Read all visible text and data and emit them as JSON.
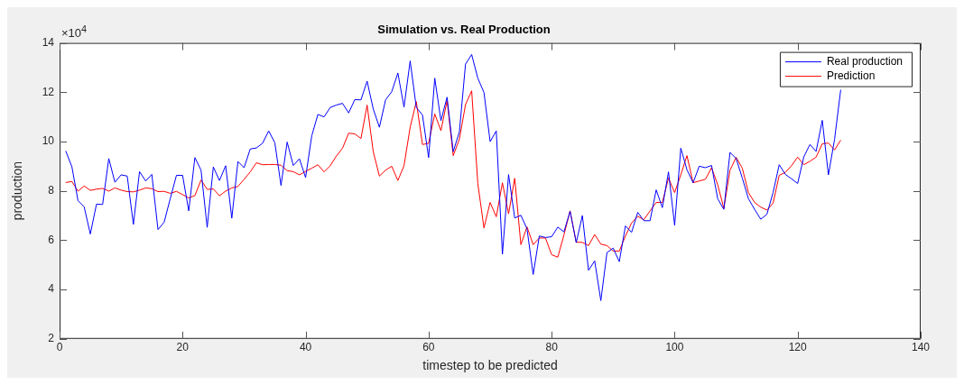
{
  "chart_data": {
    "type": "line",
    "title": "Simulation vs. Real Production",
    "xlabel": "timestep to be predicted",
    "ylabel": "production",
    "annotations": [
      "×10$^{4}$"
    ],
    "x": [
      1,
      2,
      3,
      4,
      5,
      6,
      7,
      8,
      9,
      10,
      11,
      12,
      13,
      14,
      15,
      16,
      17,
      18,
      19,
      20,
      21,
      22,
      23,
      24,
      25,
      26,
      27,
      28,
      29,
      30,
      31,
      32,
      33,
      34,
      35,
      36,
      37,
      38,
      39,
      40,
      41,
      42,
      43,
      44,
      45,
      46,
      47,
      48,
      49,
      50,
      51,
      52,
      53,
      54,
      55,
      56,
      57,
      58,
      59,
      60,
      61,
      62,
      63,
      64,
      65,
      66,
      67,
      68,
      69,
      70,
      71,
      72,
      73,
      74,
      75,
      76,
      77,
      78,
      79,
      80,
      81,
      82,
      83,
      84,
      85,
      86,
      87,
      88,
      89,
      90,
      91,
      92,
      93,
      94,
      95,
      96,
      97,
      98,
      99,
      100,
      101,
      102,
      103,
      104,
      105,
      106,
      107,
      108,
      109,
      110,
      111,
      112,
      113,
      114,
      115,
      116,
      117,
      118,
      119,
      120,
      121,
      122,
      123,
      124,
      125,
      126,
      127
    ],
    "series": [
      {
        "name": "Real production",
        "color": "#0000ff",
        "values": [
          9.62,
          8.98,
          7.6,
          7.35,
          6.25,
          7.46,
          7.45,
          9.31,
          8.35,
          8.65,
          8.6,
          6.64,
          8.78,
          8.4,
          8.67,
          6.43,
          6.73,
          7.69,
          8.63,
          8.63,
          7.19,
          9.35,
          8.84,
          6.52,
          8.97,
          8.42,
          9.02,
          6.89,
          9.19,
          8.94,
          9.7,
          9.74,
          9.93,
          10.43,
          9.95,
          8.22,
          9.98,
          9.03,
          9.3,
          8.54,
          10.23,
          11.1,
          11.0,
          11.38,
          11.48,
          11.55,
          11.16,
          11.7,
          11.69,
          12.45,
          11.32,
          10.58,
          11.69,
          12.02,
          12.78,
          11.4,
          13.27,
          11.38,
          11.08,
          9.35,
          12.57,
          10.85,
          11.8,
          9.59,
          10.39,
          13.14,
          13.53,
          12.57,
          11.99,
          10.0,
          10.43,
          5.43,
          8.66,
          6.9,
          7.01,
          6.46,
          4.61,
          6.17,
          6.11,
          6.14,
          6.53,
          6.34,
          7.17,
          5.9,
          7.0,
          4.78,
          5.16,
          3.55,
          5.5,
          5.68,
          5.13,
          6.58,
          6.32,
          7.13,
          6.79,
          6.79,
          8.04,
          7.32,
          8.77,
          6.6,
          9.73,
          8.86,
          8.33,
          9.0,
          8.94,
          9.03,
          7.68,
          7.25,
          9.56,
          9.31,
          8.52,
          7.68,
          7.25,
          6.85,
          7.05,
          7.93,
          9.06,
          8.67,
          8.49,
          8.3,
          9.38,
          9.88,
          9.6,
          10.86,
          8.65,
          10.09,
          12.1
        ]
      },
      {
        "name": "Prediction",
        "color": "#ff0000",
        "values": [
          8.34,
          8.38,
          7.99,
          8.2,
          8.02,
          8.07,
          8.1,
          7.99,
          8.12,
          8.03,
          7.97,
          7.96,
          8.03,
          8.12,
          8.09,
          7.97,
          7.98,
          7.9,
          7.98,
          7.85,
          7.71,
          7.81,
          8.44,
          8.06,
          8.08,
          7.8,
          7.99,
          8.12,
          8.18,
          8.47,
          8.77,
          9.14,
          9.06,
          9.07,
          9.07,
          9.04,
          8.82,
          8.78,
          8.65,
          8.79,
          8.92,
          9.06,
          8.77,
          9.02,
          9.41,
          9.73,
          10.34,
          10.31,
          10.12,
          11.48,
          9.59,
          8.6,
          8.84,
          9.0,
          8.42,
          9.02,
          10.58,
          11.62,
          9.88,
          9.93,
          11.12,
          10.44,
          11.66,
          9.43,
          10.09,
          11.5,
          12.06,
          8.3,
          6.5,
          7.53,
          6.95,
          8.33,
          7.07,
          8.51,
          5.82,
          6.54,
          5.82,
          6.09,
          6.09,
          5.41,
          5.31,
          6.21,
          7.19,
          5.92,
          5.91,
          5.78,
          6.23,
          5.84,
          5.78,
          5.56,
          5.56,
          6.17,
          6.7,
          6.97,
          6.83,
          7.19,
          7.53,
          7.53,
          8.52,
          7.93,
          8.65,
          9.43,
          8.33,
          8.4,
          8.47,
          8.94,
          8.25,
          7.29,
          8.84,
          9.36,
          8.92,
          7.93,
          7.53,
          7.34,
          7.22,
          7.5,
          8.63,
          8.75,
          9.02,
          9.37,
          9.06,
          9.2,
          9.37,
          9.91,
          9.94,
          9.66,
          10.06
        ]
      }
    ],
    "xlim": [
      0,
      140
    ],
    "xticks": [
      0,
      20,
      40,
      60,
      80,
      100,
      120,
      140
    ],
    "ylim": [
      2,
      14
    ],
    "yticks": [
      2,
      4,
      6,
      8,
      10,
      12,
      14
    ],
    "legend": "top right",
    "grid": false,
    "marker": "none",
    "line_style": "solid"
  }
}
